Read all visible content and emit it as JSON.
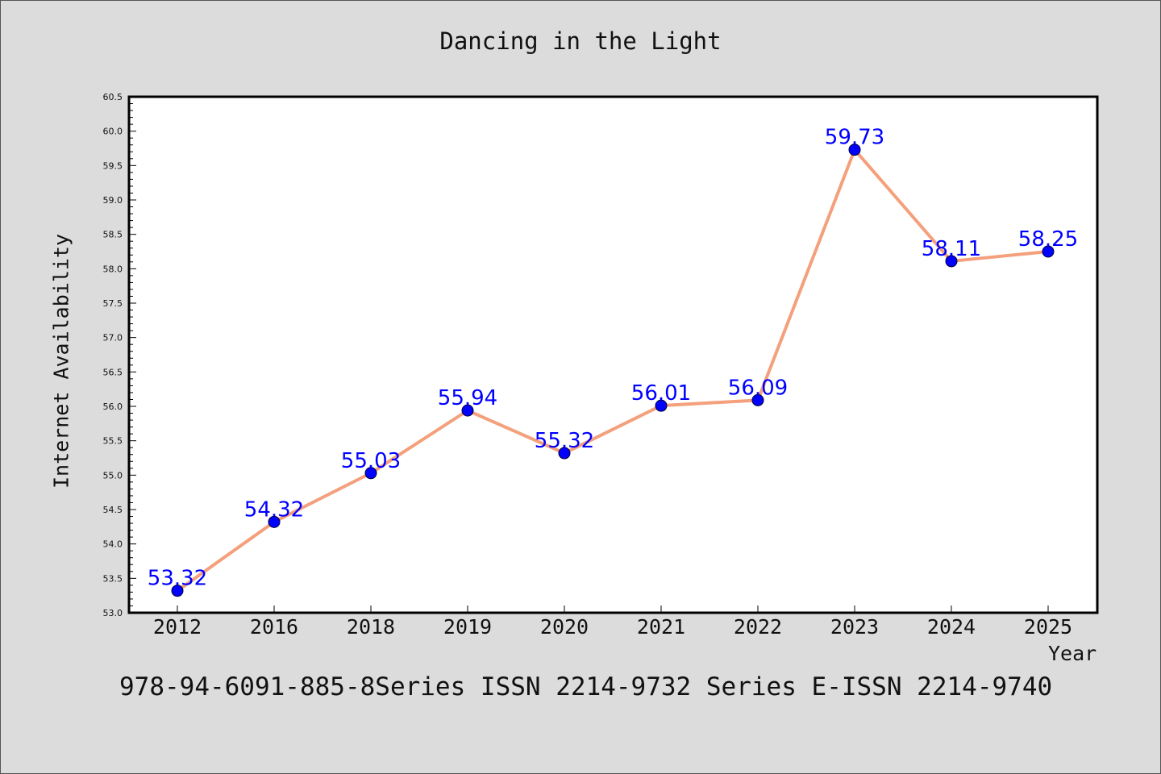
{
  "chart_data": {
    "type": "line",
    "title": "Dancing in the Light",
    "xlabel": "Year",
    "ylabel": "Internet Availability",
    "categories": [
      "2012",
      "2016",
      "2018",
      "2019",
      "2020",
      "2021",
      "2022",
      "2023",
      "2024",
      "2025"
    ],
    "series": [
      {
        "values": [
          53.32,
          54.32,
          55.03,
          55.94,
          55.32,
          56.01,
          56.09,
          59.73,
          58.11,
          58.25
        ]
      }
    ],
    "data_labels": [
      "53.32",
      "54.32",
      "55.03",
      "55.94",
      "55.32",
      "56.01",
      "56.09",
      "59.73",
      "58.11",
      "58.25"
    ],
    "ylim": [
      53.0,
      60.5
    ],
    "yticks": [
      "53.0",
      "53.5",
      "54.0",
      "54.5",
      "55.0",
      "55.5",
      "56.0",
      "56.5",
      "57.0",
      "57.5",
      "58.0",
      "58.5",
      "59.0",
      "59.5",
      "60.0",
      "60.5"
    ],
    "grid": false,
    "legend": "none",
    "colors": {
      "line": "#f4a07c",
      "marker": "#0000ff",
      "label": "#0000ff",
      "background": "#dcdcdc",
      "plot_area": "#ffffff"
    }
  },
  "footer": "978-94-6091-885-8Series ISSN 2214-9732 Series E-ISSN 2214-9740"
}
